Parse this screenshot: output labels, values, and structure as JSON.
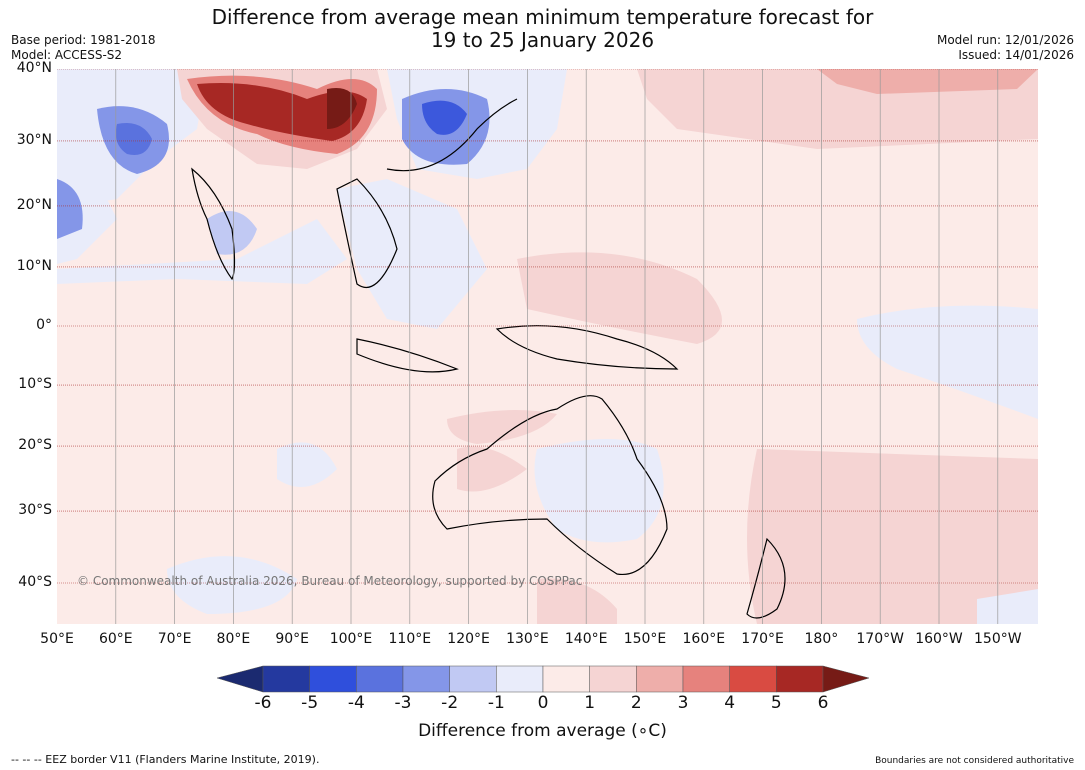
{
  "title_line1": "Difference from average mean minimum temperature forecast for",
  "title_line2": "19 to 25 January 2026",
  "base_period": "Base period: 1981-2018",
  "model": "Model: ACCESS-S2",
  "model_run": "Model run: 12/01/2026",
  "issued": "Issued: 14/01/2026",
  "copyright": "© Commonwealth of Australia 2026, Bureau of Meteorology, supported by COSPPac",
  "lat_ticks": [
    {
      "label": "40°N",
      "lat": 40
    },
    {
      "label": "30°N",
      "lat": 30
    },
    {
      "label": "20°N",
      "lat": 20
    },
    {
      "label": "10°N",
      "lat": 10
    },
    {
      "label": "0°",
      "lat": 0
    },
    {
      "label": "10°S",
      "lat": -10
    },
    {
      "label": "20°S",
      "lat": -20
    },
    {
      "label": "30°S",
      "lat": -30
    },
    {
      "label": "40°S",
      "lat": -40
    }
  ],
  "lon_ticks": [
    {
      "label": "50°E",
      "lon": 50
    },
    {
      "label": "60°E",
      "lon": 60
    },
    {
      "label": "70°E",
      "lon": 70
    },
    {
      "label": "80°E",
      "lon": 80
    },
    {
      "label": "90°E",
      "lon": 90
    },
    {
      "label": "100°E",
      "lon": 100
    },
    {
      "label": "110°E",
      "lon": 110
    },
    {
      "label": "120°E",
      "lon": 120
    },
    {
      "label": "130°E",
      "lon": 130
    },
    {
      "label": "140°E",
      "lon": 140
    },
    {
      "label": "150°E",
      "lon": 150
    },
    {
      "label": "160°E",
      "lon": 160
    },
    {
      "label": "170°E",
      "lon": 170
    },
    {
      "label": "180°",
      "lon": 180
    },
    {
      "label": "170°W",
      "lon": 190
    },
    {
      "label": "160°W",
      "lon": 200
    },
    {
      "label": "150°W",
      "lon": 210
    }
  ],
  "colorbar": {
    "label": "Difference from average (∘C)",
    "ticks": [
      "-6",
      "-5",
      "-4",
      "-3",
      "-2",
      "-1",
      "0",
      "1",
      "2",
      "3",
      "4",
      "5",
      "6"
    ],
    "colors": [
      "#24399f",
      "#2f4fdc",
      "#5a72de",
      "#8496e8",
      "#c1c9f3",
      "#e9ecfa",
      "#fcebe8",
      "#f5d4d3",
      "#eeaeaa",
      "#e6827d",
      "#d94b42",
      "#a72824"
    ],
    "extend_low": "#1b2a70",
    "extend_high": "#761b16"
  },
  "footer_left": "--  --  -- EEZ border V11 (Flanders Marine Institute, 2019).",
  "footer_right": "Boundaries are not considered authoritative"
}
